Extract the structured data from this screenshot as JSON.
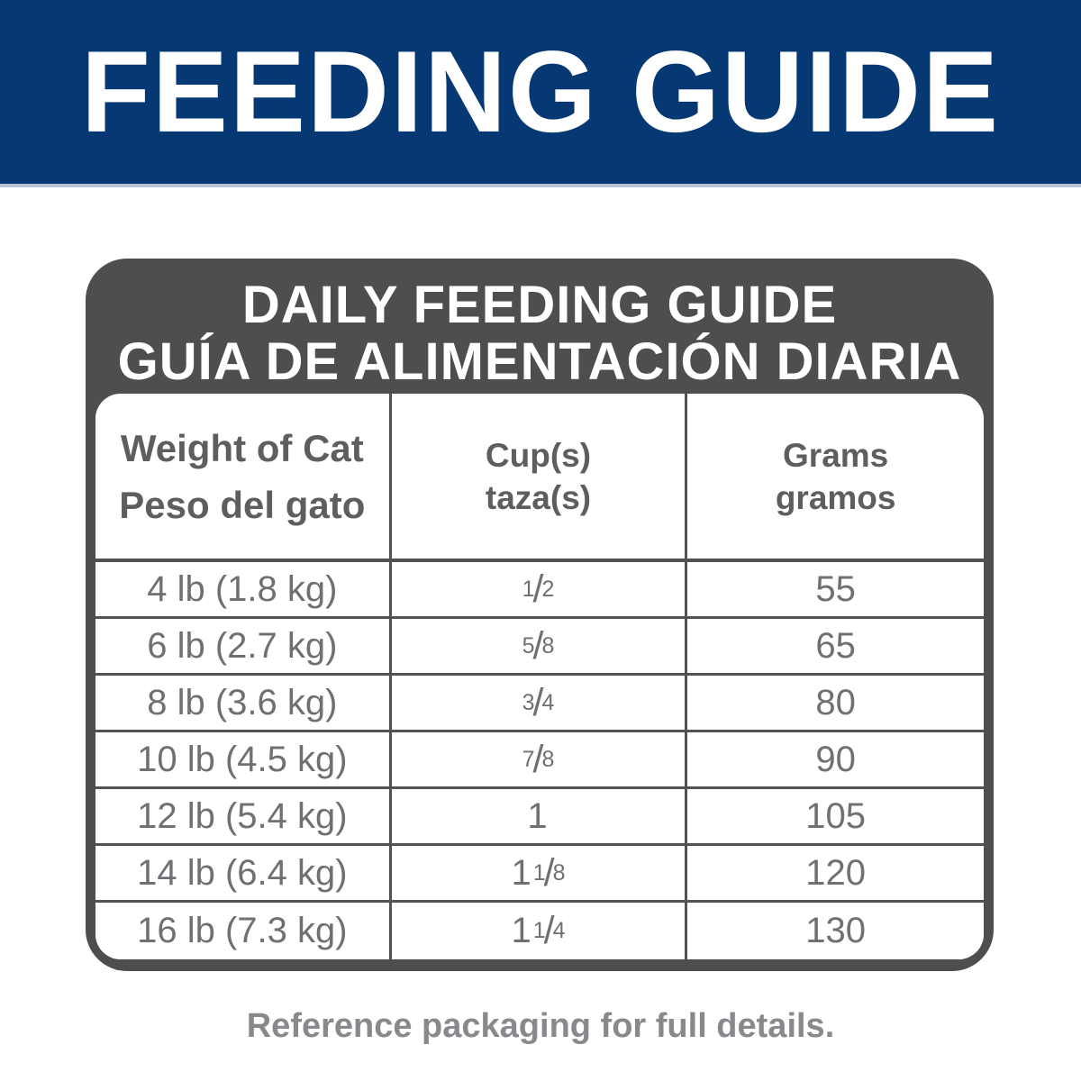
{
  "banner": {
    "title": "FEEDING GUIDE"
  },
  "card": {
    "title_en": "DAILY FEEDING GUIDE",
    "title_es": "GUÍA DE ALIMENTACIÓN DIARIA",
    "table": {
      "columns": [
        {
          "en": "Weight of Cat",
          "es": "Peso del gato"
        },
        {
          "en": "Cup(s)",
          "es": "taza(s)"
        },
        {
          "en": "Grams",
          "es": "gramos"
        }
      ],
      "rows": [
        {
          "weight": "4 lb (1.8 kg)",
          "cups": {
            "whole": "",
            "num": "1",
            "den": "2"
          },
          "grams": "55"
        },
        {
          "weight": "6 lb (2.7 kg)",
          "cups": {
            "whole": "",
            "num": "5",
            "den": "8"
          },
          "grams": "65"
        },
        {
          "weight": "8 lb (3.6 kg)",
          "cups": {
            "whole": "",
            "num": "3",
            "den": "4"
          },
          "grams": "80"
        },
        {
          "weight": "10 lb (4.5 kg)",
          "cups": {
            "whole": "",
            "num": "7",
            "den": "8"
          },
          "grams": "90"
        },
        {
          "weight": "12 lb (5.4 kg)",
          "cups": {
            "whole": "1",
            "num": "",
            "den": ""
          },
          "grams": "105"
        },
        {
          "weight": "14 lb (6.4 kg)",
          "cups": {
            "whole": "1",
            "num": "1",
            "den": "8"
          },
          "grams": "120"
        },
        {
          "weight": "16 lb (7.3 kg)",
          "cups": {
            "whole": "1",
            "num": "1",
            "den": "4"
          },
          "grams": "130"
        }
      ]
    }
  },
  "footer": {
    "note": "Reference packaging for full details."
  },
  "colors": {
    "banner_blue": "#063873",
    "card_gray": "#4d4e50",
    "grid_line": "#515254",
    "header_text": "#5d5e60",
    "cell_text": "#6f7073",
    "footer_text": "#87898c"
  }
}
